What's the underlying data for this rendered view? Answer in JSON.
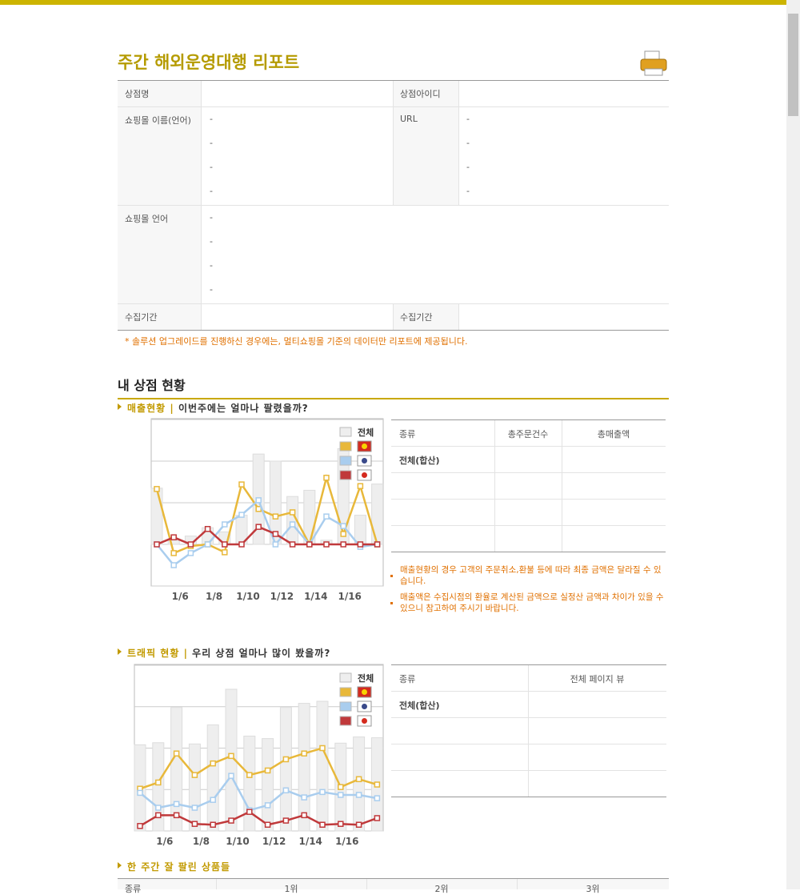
{
  "header": {
    "title": "주간 해외운영대행 리포트"
  },
  "info_table": {
    "store_name_label": "상점명",
    "store_id_label": "상점아이디",
    "mall_name_label": "쇼핑몰 이름(언어)",
    "mall_names": [
      "-",
      "-",
      "-",
      "-"
    ],
    "url_label": "URL",
    "urls": [
      "-",
      "-",
      "-",
      "-"
    ],
    "mall_language_label": "쇼핑몰 언어",
    "mall_languages": [
      "-",
      "-",
      "-",
      "-"
    ],
    "period_label": "수집기간",
    "collected_label": "수집기간"
  },
  "notice": "* 솔루션 업그레이드를 진행하신 경우에는, 멀티쇼핑몰 기준의 데이터만 리포트에 제공됩니다.",
  "section_title": "내 상점 현황",
  "sales": {
    "heading": "매출현황",
    "separator": "|",
    "question": "이번주에는 얼마나 팔렸을까?",
    "chart": {
      "type": "bar_line",
      "categories": [
        null,
        "1/6",
        null,
        "1/8",
        null,
        "1/10",
        null,
        "1/12",
        null,
        "1/14",
        null,
        "1/16",
        null,
        null
      ],
      "ylim": [
        -1,
        3
      ],
      "yticks": [
        -1,
        0,
        1,
        2,
        3
      ],
      "grid": true,
      "series": [
        {
          "name": "전체",
          "kind": "bar",
          "color": "#eeeeee",
          "values": [
            1.35,
            0.1,
            0.2,
            0.4,
            0.3,
            0.7,
            2.17,
            2.0,
            1.15,
            1.3,
            0.1,
            2.3,
            0.7,
            1.45
          ]
        },
        {
          "kind": "line",
          "color": "#e8b83a",
          "values": [
            1.33,
            -0.21,
            -0.04,
            0,
            -0.19,
            1.44,
            0.85,
            0.67,
            0.77,
            0,
            1.6,
            0.25,
            1.4,
            0
          ]
        },
        {
          "kind": "line",
          "color": "#a9cdee",
          "values": [
            0,
            -0.5,
            -0.21,
            0,
            0.48,
            0.71,
            1.06,
            0,
            0.48,
            0,
            0.67,
            0.44,
            -0.06,
            0
          ]
        },
        {
          "kind": "line",
          "color": "#c0393b",
          "values": [
            0,
            0.17,
            0,
            0.37,
            0,
            0,
            0.42,
            0.25,
            0,
            0,
            0,
            0,
            0,
            0
          ]
        }
      ]
    },
    "table": {
      "columns": [
        "종류",
        "총주문건수",
        "총매출액"
      ],
      "total_label": "전체(합산)"
    },
    "notes": [
      "매출현황의 경우 고객의 주문취소,환불 등에 따라 최종 금액은 달라질 수 있습니다.",
      "매출액은 수집시점의 환율로 계산된 금액으로 실정산 금액과 차이가 있을 수 있으니 참고하여 주시기 바랍니다."
    ]
  },
  "traffic": {
    "heading": "트래픽 현황",
    "separator": "|",
    "question": "우리 상점 얼마나 많이 봤을까?",
    "chart": {
      "type": "bar_line",
      "categories": [
        null,
        "1/6",
        null,
        "1/8",
        null,
        "1/10",
        null,
        "1/12",
        null,
        "1/14",
        null,
        "1/16",
        null,
        null
      ],
      "ylim": [
        0,
        4
      ],
      "yticks": [
        0,
        1,
        2,
        3,
        4
      ],
      "grid": true,
      "series": [
        {
          "name": "전체",
          "kind": "bar",
          "color": "#eeeeee",
          "values": [
            2.08,
            2.13,
            2.98,
            2.1,
            2.56,
            3.42,
            2.29,
            2.23,
            2.98,
            3.08,
            3.13,
            2.12,
            2.27,
            2.25
          ]
        },
        {
          "kind": "line",
          "color": "#e8b83a",
          "values": [
            1.02,
            1.17,
            1.87,
            1.35,
            1.63,
            1.81,
            1.35,
            1.46,
            1.73,
            1.87,
            2.0,
            1.06,
            1.25,
            1.12
          ]
        },
        {
          "kind": "line",
          "color": "#a9cdee",
          "values": [
            0.92,
            0.56,
            0.65,
            0.56,
            0.75,
            1.33,
            0.5,
            0.62,
            0.98,
            0.81,
            0.94,
            0.87,
            0.87,
            0.79
          ]
        },
        {
          "kind": "line",
          "color": "#c0393b",
          "values": [
            0.12,
            0.38,
            0.38,
            0.17,
            0.15,
            0.25,
            0.46,
            0.15,
            0.25,
            0.38,
            0.15,
            0.17,
            0.15,
            0.31
          ]
        }
      ]
    },
    "table": {
      "columns": [
        "종류",
        "전체 페이지 뷰"
      ],
      "total_label": "전체(합산)"
    }
  },
  "best_sellers": {
    "heading": "한 주간 잘 팔린 상품들",
    "columns": [
      "종류",
      "1위",
      "2위",
      "3위"
    ]
  }
}
